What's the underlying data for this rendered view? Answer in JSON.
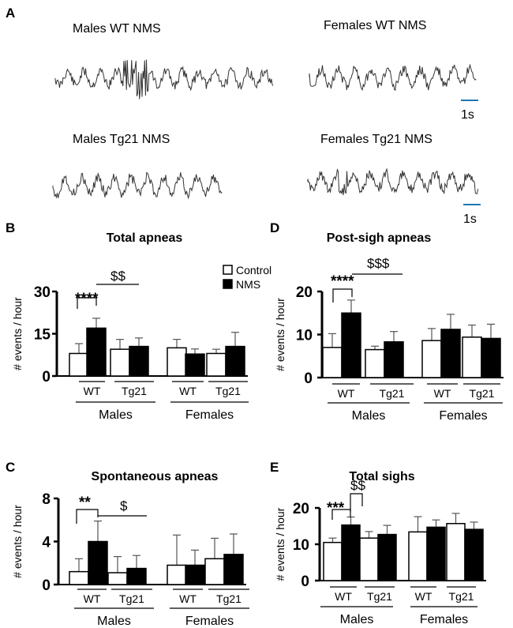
{
  "panel_a": {
    "label": "A",
    "traces": [
      {
        "title": "Males WT NMS",
        "seed": 11,
        "amp": 0.9,
        "sigh": true
      },
      {
        "title": "Females WT NMS",
        "seed": 23,
        "amp": 1.0,
        "sigh": false
      },
      {
        "title": "Males Tg21 NMS",
        "seed": 37,
        "amp": 1.0,
        "sigh": false
      },
      {
        "title": "Females Tg21 NMS",
        "seed": 51,
        "amp": 0.95,
        "sigh": true
      }
    ],
    "scale_bars": [
      "1s",
      "1s"
    ],
    "scale_color": "#1f77b4"
  },
  "legend": {
    "control": "Control",
    "nms": "NMS"
  },
  "colors": {
    "control": "#ffffff",
    "nms": "#000000"
  },
  "chart_data": [
    {
      "panel": "B",
      "type": "bar",
      "title": "Total apneas",
      "ylabel": "# events / hour",
      "ylim": [
        0,
        30
      ],
      "yticks": [
        0,
        15,
        30
      ],
      "groups": [
        {
          "sex": "Males",
          "genotype": "WT",
          "control": 8,
          "control_err": 3.5,
          "nms": 17,
          "nms_err": 3.5
        },
        {
          "sex": "Males",
          "genotype": "Tg21",
          "control": 9.5,
          "control_err": 3.5,
          "nms": 10.5,
          "nms_err": 3
        },
        {
          "sex": "Females",
          "genotype": "WT",
          "control": 10,
          "control_err": 3,
          "nms": 7.8,
          "nms_err": 1.8
        },
        {
          "sex": "Females",
          "genotype": "Tg21",
          "control": 8,
          "control_err": 1.5,
          "nms": 10.5,
          "nms_err": 5
        }
      ],
      "sig_star": "****",
      "sig_dollar": "$$"
    },
    {
      "panel": "C",
      "type": "bar",
      "title": "Spontaneous apneas",
      "ylabel": "# events / hour",
      "ylim": [
        0,
        8
      ],
      "yticks": [
        0,
        4,
        8
      ],
      "groups": [
        {
          "sex": "Males",
          "genotype": "WT",
          "control": 1.2,
          "control_err": 1.2,
          "nms": 4,
          "nms_err": 1.9
        },
        {
          "sex": "Males",
          "genotype": "Tg21",
          "control": 1.1,
          "control_err": 1.5,
          "nms": 1.5,
          "nms_err": 1.2
        },
        {
          "sex": "Females",
          "genotype": "WT",
          "control": 1.8,
          "control_err": 2.8,
          "nms": 1.8,
          "nms_err": 1.4
        },
        {
          "sex": "Females",
          "genotype": "Tg21",
          "control": 2.4,
          "control_err": 1.9,
          "nms": 2.8,
          "nms_err": 1.9
        }
      ],
      "sig_star": "**",
      "sig_dollar": "$"
    },
    {
      "panel": "D",
      "type": "bar",
      "title": "Post-sigh apneas",
      "ylabel": "# events / hour",
      "ylim": [
        0,
        20
      ],
      "yticks": [
        0,
        10,
        20
      ],
      "groups": [
        {
          "sex": "Males",
          "genotype": "WT",
          "control": 7,
          "control_err": 3.2,
          "nms": 15,
          "nms_err": 3
        },
        {
          "sex": "Males",
          "genotype": "Tg21",
          "control": 6.5,
          "control_err": 0.8,
          "nms": 8.3,
          "nms_err": 2.4
        },
        {
          "sex": "Females",
          "genotype": "WT",
          "control": 8.6,
          "control_err": 2.8,
          "nms": 11.2,
          "nms_err": 3.5
        },
        {
          "sex": "Females",
          "genotype": "Tg21",
          "control": 9.4,
          "control_err": 2.8,
          "nms": 9.1,
          "nms_err": 3.3
        }
      ],
      "sig_star": "****",
      "sig_dollar": "$$$"
    },
    {
      "panel": "E",
      "type": "bar",
      "title": "Total sighs",
      "ylabel": "# events / hour",
      "ylim": [
        0,
        20
      ],
      "yticks": [
        0,
        10,
        20
      ],
      "groups": [
        {
          "sex": "Males",
          "genotype": "WT",
          "control": 10.5,
          "control_err": 1.2,
          "nms": 15.3,
          "nms_err": 2.2
        },
        {
          "sex": "Males",
          "genotype": "Tg21",
          "control": 11.7,
          "control_err": 1.8,
          "nms": 12.7,
          "nms_err": 2.5
        },
        {
          "sex": "Females",
          "genotype": "WT",
          "control": 13.4,
          "control_err": 4.2,
          "nms": 14.7,
          "nms_err": 2
        },
        {
          "sex": "Females",
          "genotype": "Tg21",
          "control": 15.7,
          "control_err": 2.8,
          "nms": 14.1,
          "nms_err": 2
        }
      ],
      "sig_star": "***",
      "sig_dollar": "$$"
    }
  ]
}
